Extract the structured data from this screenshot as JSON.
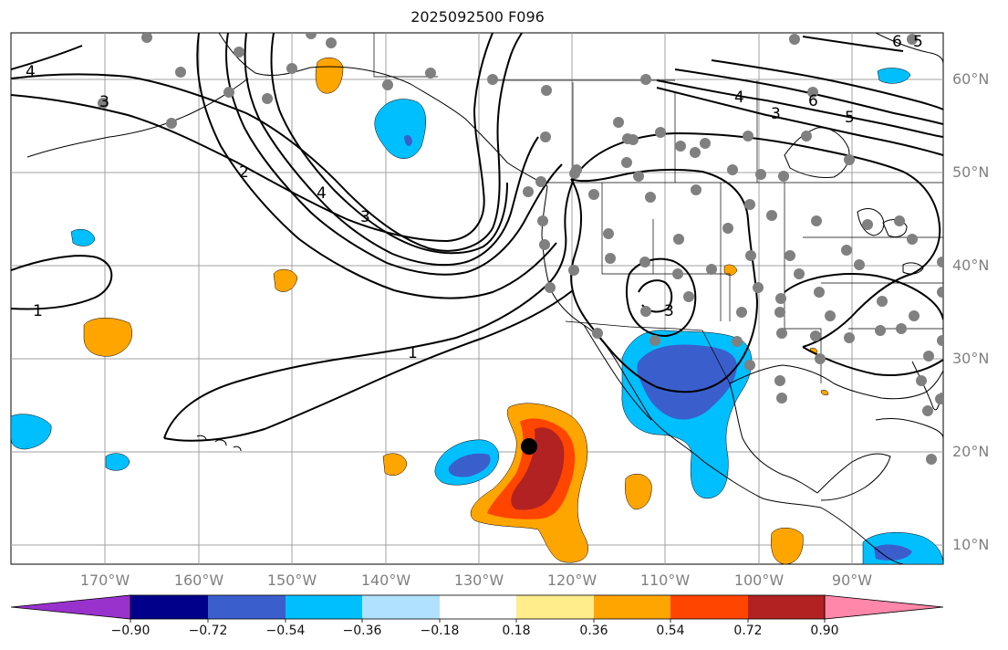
{
  "title": "2025092500 F096",
  "map": {
    "lat_labels": [
      "60°N",
      "50°N",
      "40°N",
      "30°N",
      "20°N",
      "10°N"
    ],
    "lon_labels": [
      "170°W",
      "160°W",
      "150°W",
      "140°W",
      "130°W",
      "120°W",
      "110°W",
      "100°W",
      "90°W"
    ],
    "contour_labels": [
      "4",
      "3",
      "2",
      "4",
      "3",
      "1",
      "1",
      "4",
      "3",
      "6",
      "5",
      "3",
      "6",
      "5"
    ],
    "marker_point": {
      "lon": -125,
      "lat": 20.7
    }
  },
  "colorbar": {
    "ticks": [
      "−0.90",
      "−0.72",
      "−0.54",
      "−0.36",
      "−0.18",
      "0.18",
      "0.36",
      "0.54",
      "0.72",
      "0.90"
    ],
    "colors": [
      "#9932cc",
      "#00008b",
      "#3a5fcd",
      "#00bfff",
      "#b0e2ff",
      "#ffffff",
      "#ffec8b",
      "#ffa500",
      "#ff4500",
      "#b22222",
      "#ff88aa"
    ]
  },
  "colors": {
    "contour": "#000000",
    "grid": "#a0a0a0",
    "station": "#808080",
    "coast": "#000000"
  }
}
